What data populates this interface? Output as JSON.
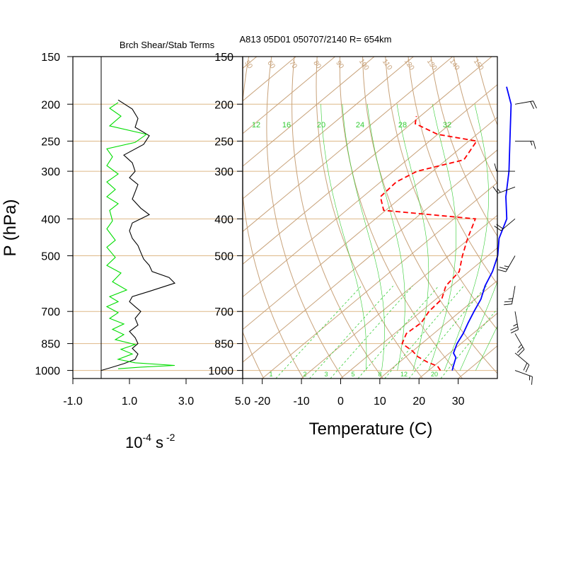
{
  "colors": {
    "background": "#ffffff",
    "frame": "#000000",
    "isobar": "#deb887",
    "skewed_isotherm": "#c8a27a",
    "dry_adiabat": "#c8a27a",
    "mixing_ratio": "#33cc33",
    "moist_adiabat": "#33cc33",
    "temperature": "#0000ff",
    "dewpoint": "#ff0000",
    "shear_term": "#000000",
    "stability_term": "#00dd00",
    "wind_barb": "#000000"
  },
  "chart_data": [
    {
      "type": "line",
      "title": "Brch Shear/Stab Terms",
      "xlabel": "10-4 s -2",
      "xlabel_base": "10",
      "xlabel_exp1": "-4",
      "xlabel_unit": "s",
      "xlabel_exp2": "-2",
      "ylabel": "P (hPa)",
      "y_scale": "log",
      "x_range": [
        -1.0,
        5.0
      ],
      "y_range": [
        1050,
        150
      ],
      "x_ticks": [
        -1.0,
        1.0,
        3.0,
        5.0
      ],
      "x_tick_labels": [
        "-1.0",
        "1.0",
        "3.0",
        "5.0"
      ],
      "y_ticks": [
        150,
        200,
        250,
        300,
        400,
        500,
        700,
        850,
        1000
      ],
      "y_tick_labels": [
        "150",
        "200",
        "250",
        "300",
        "400",
        "500",
        "700",
        "850",
        "1000"
      ],
      "zero_line": 0.0,
      "series": [
        {
          "color": "#000000",
          "points": [
            [
              0.0,
              1000
            ],
            [
              0.3,
              985
            ],
            [
              0.8,
              960
            ],
            [
              1.2,
              935
            ],
            [
              1.3,
              905
            ],
            [
              1.1,
              875
            ],
            [
              1.3,
              850
            ],
            [
              1.2,
              820
            ],
            [
              1.0,
              790
            ],
            [
              1.3,
              760
            ],
            [
              1.2,
              730
            ],
            [
              1.4,
              700
            ],
            [
              1.2,
              680
            ],
            [
              1.0,
              660
            ],
            [
              1.1,
              640
            ],
            [
              1.7,
              620
            ],
            [
              2.6,
              590
            ],
            [
              2.4,
              570
            ],
            [
              1.8,
              550
            ],
            [
              1.7,
              530
            ],
            [
              1.5,
              510
            ],
            [
              1.4,
              490
            ],
            [
              1.3,
              470
            ],
            [
              1.1,
              450
            ],
            [
              1.0,
              430
            ],
            [
              1.1,
              410
            ],
            [
              1.7,
              390
            ],
            [
              1.4,
              375
            ],
            [
              1.1,
              355
            ],
            [
              1.2,
              340
            ],
            [
              1.3,
              325
            ],
            [
              1.0,
              312
            ],
            [
              1.2,
              300
            ],
            [
              1.1,
              285
            ],
            [
              0.8,
              272
            ],
            [
              1.5,
              255
            ],
            [
              1.7,
              242
            ],
            [
              1.2,
              230
            ],
            [
              1.3,
              218
            ],
            [
              1.1,
              206
            ],
            [
              0.6,
              195
            ]
          ]
        },
        {
          "color": "#00dd00",
          "points": [
            [
              0.6,
              990
            ],
            [
              1.4,
              980
            ],
            [
              2.6,
              970
            ],
            [
              1.2,
              955
            ],
            [
              0.6,
              935
            ],
            [
              1.1,
              905
            ],
            [
              0.7,
              880
            ],
            [
              1.2,
              855
            ],
            [
              0.5,
              830
            ],
            [
              0.8,
              805
            ],
            [
              0.4,
              780
            ],
            [
              0.8,
              755
            ],
            [
              0.3,
              730
            ],
            [
              0.6,
              705
            ],
            [
              0.2,
              680
            ],
            [
              0.6,
              660
            ],
            [
              0.3,
              640
            ],
            [
              0.9,
              615
            ],
            [
              0.4,
              585
            ],
            [
              0.7,
              555
            ],
            [
              0.2,
              530
            ],
            [
              0.5,
              505
            ],
            [
              0.2,
              475
            ],
            [
              0.5,
              455
            ],
            [
              0.2,
              425
            ],
            [
              0.4,
              405
            ],
            [
              0.3,
              380
            ],
            [
              0.6,
              365
            ],
            [
              0.2,
              350
            ],
            [
              0.5,
              335
            ],
            [
              0.2,
              320
            ],
            [
              0.6,
              305
            ],
            [
              0.2,
              290
            ],
            [
              0.4,
              275
            ],
            [
              0.2,
              262
            ],
            [
              1.2,
              252
            ],
            [
              1.6,
              240
            ],
            [
              0.3,
              228
            ],
            [
              0.7,
              215
            ],
            [
              0.3,
              205
            ],
            [
              0.6,
              198
            ]
          ]
        }
      ]
    },
    {
      "type": "line",
      "title": "A813 05D01 050707/2140 R= 654km",
      "xlabel": "Temperature (C)",
      "y_scale": "log",
      "skewed_x": true,
      "x_range": [
        -25,
        40
      ],
      "y_range": [
        1050,
        150
      ],
      "x_ticks": [
        -20,
        -10,
        0,
        10,
        20,
        30
      ],
      "x_tick_labels": [
        "-20",
        "-10",
        "0",
        "10",
        "20",
        "30"
      ],
      "y_ticks": [
        150,
        200,
        250,
        300,
        400,
        500,
        700,
        850,
        1000
      ],
      "y_tick_labels": [
        "150",
        "200",
        "250",
        "300",
        "400",
        "500",
        "700",
        "850",
        "1000"
      ],
      "mixing_ratio_labels_top": [
        "12",
        "16",
        "20",
        "24",
        "28",
        "32"
      ],
      "mixing_ratio_labels_bottom": [
        "1",
        "2",
        "3",
        "5",
        "8",
        "12",
        "20"
      ],
      "adiabat_labels_top": [
        "50",
        "60",
        "70",
        "80",
        "90",
        "100",
        "110",
        "120",
        "130",
        "140",
        "150"
      ],
      "series": [
        {
          "name": "Temperature",
          "color": "#0000ff",
          "style": "solid",
          "points": [
            [
              26.0,
              1000
            ],
            [
              25.0,
              975
            ],
            [
              24.0,
              950
            ],
            [
              23.0,
              925
            ],
            [
              21.0,
              900
            ],
            [
              19.0,
              850
            ],
            [
              17.5,
              800
            ],
            [
              15.5,
              750
            ],
            [
              13.5,
              700
            ],
            [
              11.5,
              650
            ],
            [
              8.5,
              600
            ],
            [
              6.0,
              550
            ],
            [
              2.5,
              500
            ],
            [
              -2.5,
              450
            ],
            [
              -6.5,
              400
            ],
            [
              -13.5,
              350
            ],
            [
              -20.5,
              300
            ],
            [
              -29.5,
              250
            ],
            [
              -40.5,
              200
            ],
            [
              -47.0,
              180
            ]
          ]
        },
        {
          "name": "Dewpoint",
          "color": "#ff0000",
          "style": "dashed",
          "points": [
            [
              23.0,
              1000
            ],
            [
              21.0,
              975
            ],
            [
              17.0,
              950
            ],
            [
              13.0,
              920
            ],
            [
              10.0,
              890
            ],
            [
              5.0,
              850
            ],
            [
              3.0,
              800
            ],
            [
              3.5,
              750
            ],
            [
              2.0,
              700
            ],
            [
              1.5,
              650
            ],
            [
              -1.5,
              600
            ],
            [
              -2.5,
              550
            ],
            [
              -6.5,
              500
            ],
            [
              -10.5,
              450
            ],
            [
              -14.5,
              400
            ],
            [
              -40.5,
              380
            ],
            [
              -45.5,
              350
            ],
            [
              -46.0,
              320
            ],
            [
              -44.0,
              300
            ],
            [
              -35.5,
              280
            ],
            [
              -38.0,
              250
            ],
            [
              -50.0,
              240
            ],
            [
              -59.0,
              225
            ],
            [
              -61.0,
              215
            ]
          ]
        }
      ]
    },
    {
      "type": "wind_barbs",
      "levels": [
        {
          "p": 1000,
          "dir": 110,
          "spd": 15
        },
        {
          "p": 900,
          "dir": 130,
          "spd": 20
        },
        {
          "p": 800,
          "dir": 150,
          "spd": 25
        },
        {
          "p": 700,
          "dir": 170,
          "spd": 25
        },
        {
          "p": 600,
          "dir": 190,
          "spd": 25
        },
        {
          "p": 500,
          "dir": 210,
          "spd": 25
        },
        {
          "p": 400,
          "dir": 230,
          "spd": 20
        },
        {
          "p": 330,
          "dir": 250,
          "spd": 15
        },
        {
          "p": 300,
          "dir": 270,
          "spd": 10
        },
        {
          "p": 250,
          "dir": 90,
          "spd": 15
        },
        {
          "p": 200,
          "dir": 80,
          "spd": 20
        }
      ]
    }
  ]
}
